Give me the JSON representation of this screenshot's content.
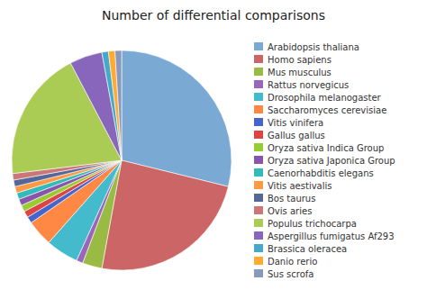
{
  "chart_data": {
    "type": "pie",
    "title": "Number of differential comparisons",
    "categories": [
      "Arabidopsis thaliana",
      "Homo sapiens",
      "Mus musculus",
      "Rattus norvegicus",
      "Drosophila melanogaster",
      "Saccharomyces cerevisiae",
      "Vitis vinifera",
      "Gallus gallus",
      "Oryza sativa Indica Group",
      "Oryza sativa Japonica Group",
      "Caenorhabditis elegans",
      "Vitis aestivalis",
      "Bos taurus",
      "Ovis aries",
      "Populus trichocarpa",
      "Aspergillus fumigatus Af293",
      "Brassica oleracea",
      "Danio rerio",
      "Sus scrofa"
    ],
    "values": [
      30,
      25,
      3,
      1,
      5,
      4,
      1,
      1,
      1,
      1,
      1,
      1,
      1,
      1,
      20,
      5,
      1,
      1,
      1
    ],
    "colors": [
      "#7aaad4",
      "#cc6666",
      "#99bb44",
      "#9966bb",
      "#44bbcc",
      "#ff8844",
      "#4466cc",
      "#dd4444",
      "#99cc33",
      "#8855aa",
      "#33bbbb",
      "#ff9944",
      "#556699",
      "#cc7777",
      "#aacc55",
      "#8866bb",
      "#44aacc",
      "#ffaa33",
      "#8899bb"
    ],
    "legend": "right"
  }
}
